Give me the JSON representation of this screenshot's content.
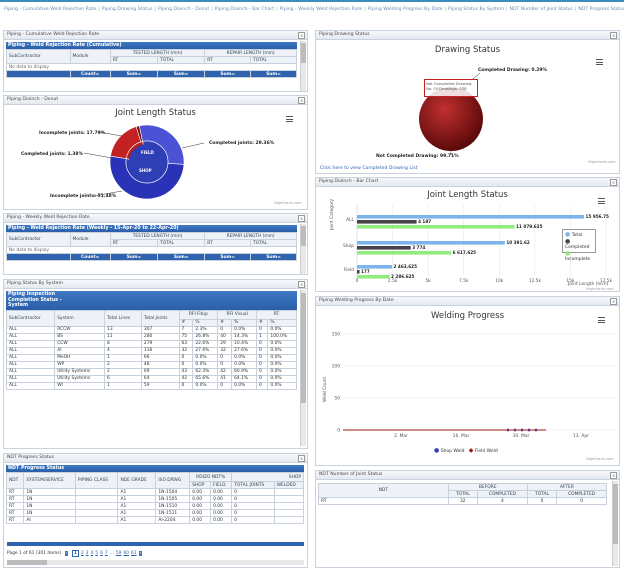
{
  "breadcrumbs": [
    "Piping - Cumulative Weld Rejection Rate",
    "Piping Drawing Status",
    "Piping Diainch - Donut",
    "Piping DiaInch - Bar Chart",
    "Piping - Weekly Weld Rejection Rate",
    "Piping Welding Progress By Date",
    "Piping Status By System",
    "NDT Number of Joint Status",
    "NDT Progress Status"
  ],
  "colors": {
    "accent": "#2f63ad",
    "blue": "#3b5bc4",
    "red": "#c42222",
    "darkred": "#7a0f0f",
    "green": "#90ed7d",
    "lightblue": "#7cb5ec",
    "dark": "#434348"
  },
  "cumulative": {
    "panel_title": "Piping - Cumulative Weld Rejection Rate",
    "grid_title": "Piping - Weld Rejection Rate (Cumulative)",
    "col_sub": "SubContractor",
    "col_module": "Module",
    "col_tested": "TESTED LENGTH (mm)",
    "col_repair": "REPAIR LENGTH (mm)",
    "col_rt": "RT",
    "col_total": "TOTAL",
    "no_data": "No data to display",
    "footer": [
      "Count=",
      "Sum=",
      "Sum=",
      "Sum=",
      "Sum="
    ]
  },
  "donut": {
    "panel_title": "Piping Diainch - Donut",
    "title": "Joint Length Status",
    "labels": {
      "incomplete": "Incomplete joints: 17.79%",
      "completed_inner": "Completed joints: 1.38%",
      "completed_outer": "Completed joints: 29.36%",
      "incomplete_outer": "Incomplete joints: 51.48%"
    },
    "inner": {
      "field": "FIELD",
      "shop": "SHOP"
    },
    "credit": "Highcharts.com"
  },
  "weekly": {
    "panel_title": "Piping - Weekly Weld Rejection Rate",
    "grid_title": "Piping - Weld Rejection Rate (Weekly - 15-Apr-20 to 22-Apr-20)",
    "col_sub": "SubContractor",
    "col_module": "Module",
    "col_tested": "TESTED LENGTH (mm)",
    "col_repair": "REPAIR LENGTH (mm)",
    "col_rt": "RT",
    "col_total": "TOTAL",
    "no_data": "No data to display",
    "footer": [
      "Count=",
      "Sum=",
      "Sum=",
      "Sum=",
      "Sum="
    ]
  },
  "system": {
    "panel_title": "Piping Status By System",
    "grid_title_1": "Piping Inspection",
    "grid_title_2": "Completion Status -",
    "grid_title_3": "System",
    "headers": [
      "SubContractor",
      "System",
      "Total Lines",
      "Total Joints",
      "RFI Fitup",
      "RFI Visual",
      "RT"
    ],
    "subheaders": [
      "#",
      "%",
      "#",
      "%",
      "#",
      "%"
    ],
    "rows": [
      [
        "ALL",
        "RCCW",
        "13",
        "307",
        "7",
        "2.3%",
        "0",
        "0.0%",
        "0",
        "0.0%"
      ],
      [
        "ALL",
        "BS",
        "11",
        "280",
        "75",
        "26.8%",
        "40",
        "14.3%",
        "1",
        "100.0%"
      ],
      [
        "ALL",
        "CCW",
        "8",
        "279",
        "63",
        "22.6%",
        "29",
        "10.4%",
        "0",
        "0.0%"
      ],
      [
        "ALL",
        "AI",
        "4",
        "116",
        "32",
        "27.6%",
        "32",
        "27.6%",
        "0",
        "0.0%"
      ],
      [
        "ALL",
        "MeOH",
        "1",
        "66",
        "0",
        "0.0%",
        "0",
        "0.0%",
        "0",
        "0.0%"
      ],
      [
        "ALL",
        "WP",
        "2",
        "48",
        "0",
        "0.0%",
        "0",
        "0.0%",
        "0",
        "0.0%"
      ],
      [
        "ALL",
        "Utility Systems",
        "2",
        "69",
        "43",
        "62.3%",
        "42",
        "60.9%",
        "0",
        "0.0%"
      ],
      [
        "ALL",
        "Utility Systems",
        "6",
        "64",
        "42",
        "65.6%",
        "41",
        "64.1%",
        "0",
        "0.0%"
      ],
      [
        "ALL",
        "WI",
        "1",
        "59",
        "0",
        "0.0%",
        "0",
        "0.0%",
        "0",
        "0.0%"
      ]
    ]
  },
  "ndt_progress": {
    "panel_title": "NDT Progress Status",
    "grid_title": "NDT Progress Status",
    "headers": [
      "NDT",
      "SYSTEM/SERVICE",
      "PIPING CLASS",
      "NDE GRADE",
      "ISO DRWG",
      "RDIZO NDT%",
      "SHOP"
    ],
    "subheaders": [
      "SHOP",
      "FIELD",
      "TOTAL JOINTS",
      "WELDED"
    ],
    "rows": [
      [
        "RT",
        "1N",
        "",
        "A1",
        "1N-1504",
        "0.00",
        "0.00",
        "0",
        ""
      ],
      [
        "RT",
        "1N",
        "",
        "A1",
        "1N-1505",
        "0.00",
        "0.00",
        "0",
        ""
      ],
      [
        "RT",
        "1N",
        "",
        "A1",
        "1N-1510",
        "0.00",
        "0.00",
        "0",
        ""
      ],
      [
        "RT",
        "1N",
        "",
        "A1",
        "1N-1511",
        "0.00",
        "0.00",
        "0",
        ""
      ],
      [
        "RT",
        "AI",
        "",
        "A1",
        "AI-2204",
        "0.00",
        "0.00",
        "0",
        ""
      ]
    ],
    "pager_text": "Page 1 of 61 (301 items)",
    "pages": [
      "1",
      "2",
      "3",
      "4",
      "5",
      "6",
      "7",
      "...",
      "59",
      "60",
      "61"
    ]
  },
  "drawing": {
    "panel_title": "Piping Drawing Status",
    "title": "Drawing Status",
    "label_completed": "Completed Drawing: 0.29%",
    "label_not": "Not Completed Drawing: 99.71%",
    "tooltip_1": "Not Completed Drawing",
    "tooltip_2": "No. Of Drawings: 338",
    "link": "Click here to view Completed Drawing List",
    "credit": "Highcharts.com"
  },
  "bar": {
    "panel_title": "Piping DiaInch - Bar Chart",
    "title": "Joint Length Status",
    "ylabel": "Joint Category",
    "xlabel": "Joint Length (Inch)",
    "legend": [
      "Total",
      "Completed",
      "Incomplete"
    ],
    "categories": [
      "ALL",
      "Shop",
      "Field"
    ],
    "data_labels": {
      "ALL": [
        "15 956.75",
        "4 187",
        "11 079.625"
      ],
      "Shop": [
        "10 391.62",
        "3 774",
        "6 617.625"
      ],
      "Field": [
        "2 463.625",
        "177",
        "2 286.625"
      ]
    },
    "ticks": [
      "0",
      "2.5k",
      "5k",
      "7.5k",
      "10k",
      "12.5k",
      "15k",
      "17.5k"
    ],
    "credit": "Highcharts.com"
  },
  "welding": {
    "panel_title": "Piping Welding Progress By Date",
    "title": "Welding Progress",
    "ylabel": "Weld Count",
    "yticks": [
      "150",
      "100",
      "50",
      "0"
    ],
    "xticks": [
      "2. Mar",
      "16. Mar",
      "30. Mar",
      "13. Apr"
    ],
    "legend": [
      "Shop Weld",
      "Field Weld"
    ],
    "credit": "Highcharts.com"
  },
  "ndt_joint": {
    "panel_title": "NDT Number of Joint Status",
    "col_ndt": "NDT",
    "before": "BEFORE",
    "after": "AFTER",
    "sub": [
      "TOTAL",
      "COMPLETED",
      "TOTAL",
      "COMPLETED"
    ],
    "rows": [
      [
        "RT",
        "32",
        "4",
        "0",
        "0"
      ]
    ]
  },
  "chart_data": [
    {
      "type": "pie",
      "title": "Joint Length Status",
      "series": [
        {
          "name": "inner",
          "values": [
            {
              "label": "FIELD",
              "value": 19.17
            },
            {
              "label": "SHOP",
              "value": 80.84
            }
          ]
        },
        {
          "name": "outer",
          "values": [
            {
              "label": "Incomplete joints",
              "value": 17.79
            },
            {
              "label": "Completed joints",
              "value": 1.38
            },
            {
              "label": "Completed joints",
              "value": 29.36
            },
            {
              "label": "Incomplete joints",
              "value": 51.48
            }
          ]
        }
      ]
    },
    {
      "type": "pie",
      "title": "Drawing Status",
      "values": [
        {
          "label": "Completed Drawing",
          "value": 0.29
        },
        {
          "label": "Not Completed Drawing",
          "value": 99.71
        }
      ]
    },
    {
      "type": "bar",
      "title": "Joint Length Status",
      "categories": [
        "ALL",
        "Shop",
        "Field"
      ],
      "series": [
        {
          "name": "Total",
          "values": [
            15956.75,
            10391.62,
            2463.625
          ]
        },
        {
          "name": "Completed",
          "values": [
            4187,
            3774,
            177
          ]
        },
        {
          "name": "Incomplete",
          "values": [
            11079.625,
            6617.625,
            2286.625
          ]
        }
      ],
      "xlabel": "Joint Length (Inch)",
      "ylabel": "Joint Category",
      "xlim": [
        0,
        17500
      ]
    },
    {
      "type": "line",
      "title": "Welding Progress",
      "series": [
        {
          "name": "Shop Weld",
          "values": [
            0,
            0,
            0,
            0,
            0
          ]
        },
        {
          "name": "Field Weld",
          "values": [
            0,
            0,
            0,
            0,
            0
          ]
        }
      ],
      "xlabel": "",
      "ylabel": "Weld Count",
      "ylim": [
        0,
        150
      ]
    }
  ]
}
